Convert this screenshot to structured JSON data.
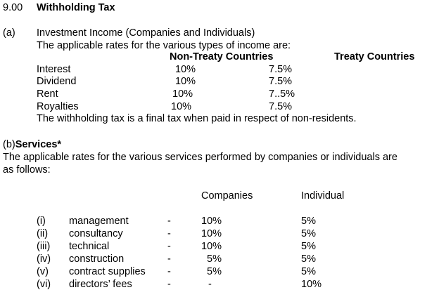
{
  "section": {
    "number": "9.00",
    "title": "Withholding Tax"
  },
  "part_a": {
    "marker": "(a)",
    "heading": "Investment Income (Companies and Individuals)",
    "intro": "The applicable rates for the various types of income are:",
    "col_non_treaty": "Non-Treaty Countries",
    "col_treaty": "Treaty Countries",
    "rows": [
      {
        "label": "Interest",
        "non_treaty": "10%",
        "treaty": "7.5%"
      },
      {
        "label": "Dividend",
        "non_treaty": "10%",
        "treaty": "7.5%"
      },
      {
        "label": "Rent",
        "non_treaty": "10%",
        "treaty": "7..5%"
      },
      {
        "label": "Royalties",
        "non_treaty": "10%",
        "treaty": "7.5%"
      }
    ],
    "note": "The withholding tax is a final tax when paid in respect of non-residents."
  },
  "part_b": {
    "marker": "(b)",
    "heading": "Services*",
    "intro_line1": "The applicable rates for the various services performed by companies or individuals are",
    "intro_line2": "as follows:",
    "col_companies": "Companies",
    "col_individual": "Individual",
    "rows": [
      {
        "num": "(i)",
        "label": "management",
        "dash": "-",
        "companies": "10%",
        "individual": "5%"
      },
      {
        "num": "(ii)",
        "label": "consultancy",
        "dash": "-",
        "companies": "10%",
        "individual": "5%"
      },
      {
        "num": "(iii)",
        "label": "technical",
        "dash": "-",
        "companies": "10%",
        "individual": "5%"
      },
      {
        "num": "(iv)",
        "label": "construction",
        "dash": "-",
        "companies": "5%",
        "individual": "5%"
      },
      {
        "num": "(v)",
        "label": "contract supplies",
        "dash": "-",
        "companies": "5%",
        "individual": "5%"
      },
      {
        "num": "(vi)",
        "label": "directors’ fees",
        "dash": "-",
        "companies": "-",
        "individual": "10%"
      }
    ]
  }
}
